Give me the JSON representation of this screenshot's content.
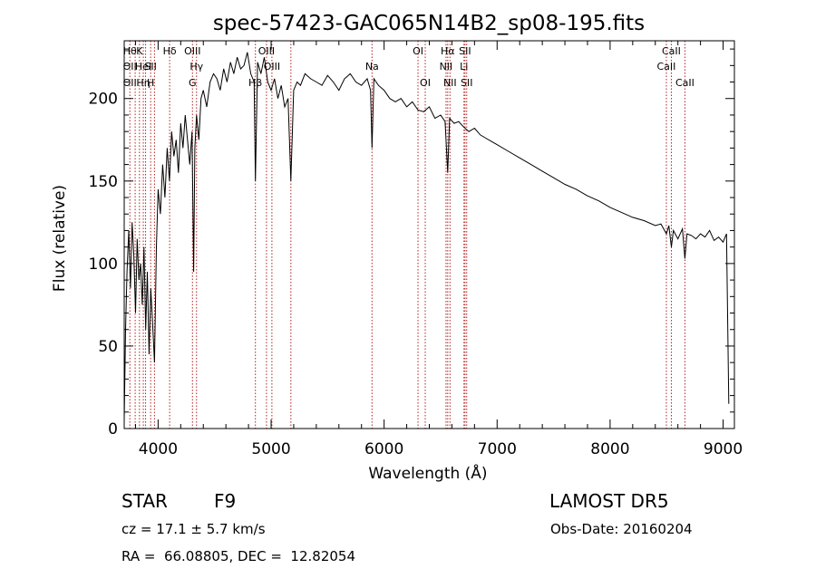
{
  "chart_data": {
    "type": "line",
    "title": "spec-57423-GAC065N14B2_sp08-195.fits",
    "xlabel": "Wavelength (Å)",
    "ylabel": "Flux (relative)",
    "xlim": [
      3700,
      9100
    ],
    "ylim": [
      0,
      235
    ],
    "xticks": [
      4000,
      5000,
      6000,
      7000,
      8000,
      9000
    ],
    "yticks": [
      0,
      50,
      100,
      150,
      200
    ],
    "grid": false,
    "line_color": "#000000",
    "marker_color": "#b22222",
    "series": [
      {
        "x": [
          3700,
          3712,
          3725,
          3740,
          3755,
          3770,
          3785,
          3800,
          3815,
          3830,
          3845,
          3860,
          3875,
          3890,
          3905,
          3920,
          3935,
          3950,
          3968,
          3985,
          4000,
          4020,
          4040,
          4060,
          4080,
          4100,
          4120,
          4140,
          4160,
          4180,
          4200,
          4220,
          4240,
          4260,
          4280,
          4300,
          4315,
          4325,
          4340,
          4360,
          4380,
          4400,
          4430,
          4460,
          4490,
          4520,
          4550,
          4580,
          4610,
          4640,
          4670,
          4700,
          4730,
          4760,
          4790,
          4820,
          4850,
          4861,
          4880,
          4910,
          4940,
          4970,
          5000,
          5030,
          5060,
          5090,
          5120,
          5150,
          5175,
          5200,
          5230,
          5260,
          5300,
          5350,
          5400,
          5450,
          5500,
          5550,
          5600,
          5650,
          5700,
          5750,
          5800,
          5850,
          5880,
          5893,
          5910,
          5950,
          6000,
          6050,
          6100,
          6150,
          6200,
          6250,
          6300,
          6350,
          6400,
          6450,
          6500,
          6540,
          6563,
          6580,
          6620,
          6660,
          6700,
          6750,
          6800,
          6850,
          6900,
          6950,
          7000,
          7100,
          7200,
          7300,
          7400,
          7500,
          7600,
          7700,
          7800,
          7900,
          8000,
          8100,
          8200,
          8300,
          8400,
          8450,
          8498,
          8520,
          8542,
          8560,
          8600,
          8640,
          8662,
          8680,
          8720,
          8760,
          8800,
          8840,
          8880,
          8920,
          8960,
          9000,
          9030,
          9050
        ],
        "y": [
          5,
          60,
          95,
          120,
          85,
          125,
          105,
          70,
          115,
          90,
          100,
          75,
          110,
          60,
          95,
          45,
          85,
          65,
          40,
          110,
          145,
          130,
          160,
          140,
          170,
          150,
          180,
          165,
          175,
          155,
          185,
          170,
          190,
          175,
          160,
          180,
          95,
          170,
          190,
          175,
          200,
          205,
          195,
          210,
          215,
          212,
          205,
          218,
          210,
          222,
          215,
          225,
          218,
          220,
          228,
          215,
          210,
          150,
          222,
          215,
          225,
          210,
          205,
          212,
          200,
          208,
          195,
          200,
          150,
          205,
          210,
          208,
          215,
          212,
          210,
          208,
          214,
          210,
          205,
          212,
          215,
          210,
          208,
          212,
          205,
          170,
          212,
          208,
          205,
          200,
          198,
          200,
          195,
          198,
          193,
          192,
          195,
          188,
          190,
          186,
          155,
          188,
          185,
          186,
          183,
          180,
          182,
          178,
          176,
          174,
          172,
          168,
          164,
          160,
          156,
          152,
          148,
          145,
          141,
          138,
          134,
          131,
          128,
          126,
          123,
          124,
          118,
          123,
          110,
          120,
          115,
          121,
          103,
          118,
          117,
          115,
          118,
          116,
          120,
          114,
          116,
          113,
          118,
          15
        ]
      }
    ],
    "lines": [
      {
        "wave": 3750,
        "labels": [
          "Hθ",
          "OII",
          "OII"
        ],
        "rows": [
          0,
          1,
          2
        ]
      },
      {
        "wave": 3797,
        "labels": [],
        "rows": []
      },
      {
        "wave": 3835,
        "labels": [
          "K"
        ],
        "rows": [
          0
        ]
      },
      {
        "wave": 3869,
        "labels": [
          "HeI",
          "Hη"
        ],
        "rows": [
          1,
          2
        ]
      },
      {
        "wave": 3889,
        "labels": [],
        "rows": []
      },
      {
        "wave": 3934,
        "labels": [
          "SII",
          "H"
        ],
        "rows": [
          1,
          2
        ]
      },
      {
        "wave": 3968,
        "labels": [],
        "rows": []
      },
      {
        "wave": 4102,
        "labels": [
          "Hδ"
        ],
        "rows": [
          0
        ]
      },
      {
        "wave": 4304,
        "labels": [
          "OIII",
          "G"
        ],
        "rows": [
          0,
          2
        ]
      },
      {
        "wave": 4340,
        "labels": [
          "Hγ"
        ],
        "rows": [
          1
        ]
      },
      {
        "wave": 4861,
        "labels": [
          "Hβ"
        ],
        "rows": [
          2
        ]
      },
      {
        "wave": 4959,
        "labels": [
          "OIII"
        ],
        "rows": [
          0
        ]
      },
      {
        "wave": 5007,
        "labels": [
          "OIII"
        ],
        "rows": [
          1
        ]
      },
      {
        "wave": 5175,
        "labels": [],
        "rows": []
      },
      {
        "wave": 5893,
        "labels": [
          "Na"
        ],
        "rows": [
          1
        ]
      },
      {
        "wave": 6300,
        "labels": [
          "OI"
        ],
        "rows": [
          0
        ]
      },
      {
        "wave": 6364,
        "labels": [
          "OI"
        ],
        "rows": [
          2
        ]
      },
      {
        "wave": 6548,
        "labels": [
          "NII"
        ],
        "rows": [
          1
        ]
      },
      {
        "wave": 6563,
        "labels": [
          "Hα"
        ],
        "rows": [
          0
        ]
      },
      {
        "wave": 6583,
        "labels": [
          "NII"
        ],
        "rows": [
          2
        ]
      },
      {
        "wave": 6707,
        "labels": [
          "Li"
        ],
        "rows": [
          1
        ]
      },
      {
        "wave": 6716,
        "labels": [
          "SII"
        ],
        "rows": [
          0
        ]
      },
      {
        "wave": 6731,
        "labels": [
          "SII"
        ],
        "rows": [
          2
        ]
      },
      {
        "wave": 8498,
        "labels": [
          "CaII"
        ],
        "rows": [
          1
        ]
      },
      {
        "wave": 8542,
        "labels": [
          "CaII"
        ],
        "rows": [
          0
        ]
      },
      {
        "wave": 8662,
        "labels": [
          "CaII"
        ],
        "rows": [
          2
        ]
      }
    ]
  },
  "info": {
    "class": "STAR",
    "subclass": "F9",
    "survey": "LAMOST DR5",
    "cz": "cz = 17.1 ± 5.7 km/s",
    "obs_date": "Obs-Date: 20160204",
    "coords": "RA =  66.08805, DEC =  12.82054"
  }
}
